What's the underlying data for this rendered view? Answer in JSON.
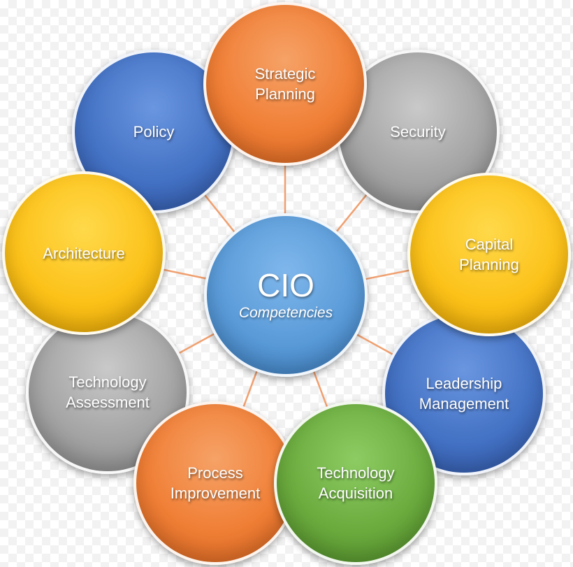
{
  "center": {
    "title": "CIO",
    "subtitle": "Competencies"
  },
  "competencies": [
    {
      "id": "strategic-planning",
      "label": "Strategic\nPlanning",
      "color": "#f07f36"
    },
    {
      "id": "security",
      "label": "Security",
      "color": "#a4a4a4"
    },
    {
      "id": "capital-planning",
      "label": "Capital\nPlanning",
      "color": "#fcc21a"
    },
    {
      "id": "leadership-management",
      "label": "Leadership\nManagement",
      "color": "#4472c4"
    },
    {
      "id": "technology-acquisition",
      "label": "Technology\nAcquisition",
      "color": "#6bab3e"
    },
    {
      "id": "process-improvement",
      "label": "Process\nImprovement",
      "color": "#f07f36"
    },
    {
      "id": "technology-assessment",
      "label": "Technology\nAssessment",
      "color": "#a4a4a4"
    },
    {
      "id": "architecture",
      "label": "Architecture",
      "color": "#fcc21a"
    },
    {
      "id": "policy",
      "label": "Policy",
      "color": "#4472c4"
    }
  ],
  "colors": {
    "connector": "#f0a070",
    "center": "#5a9bd8"
  }
}
